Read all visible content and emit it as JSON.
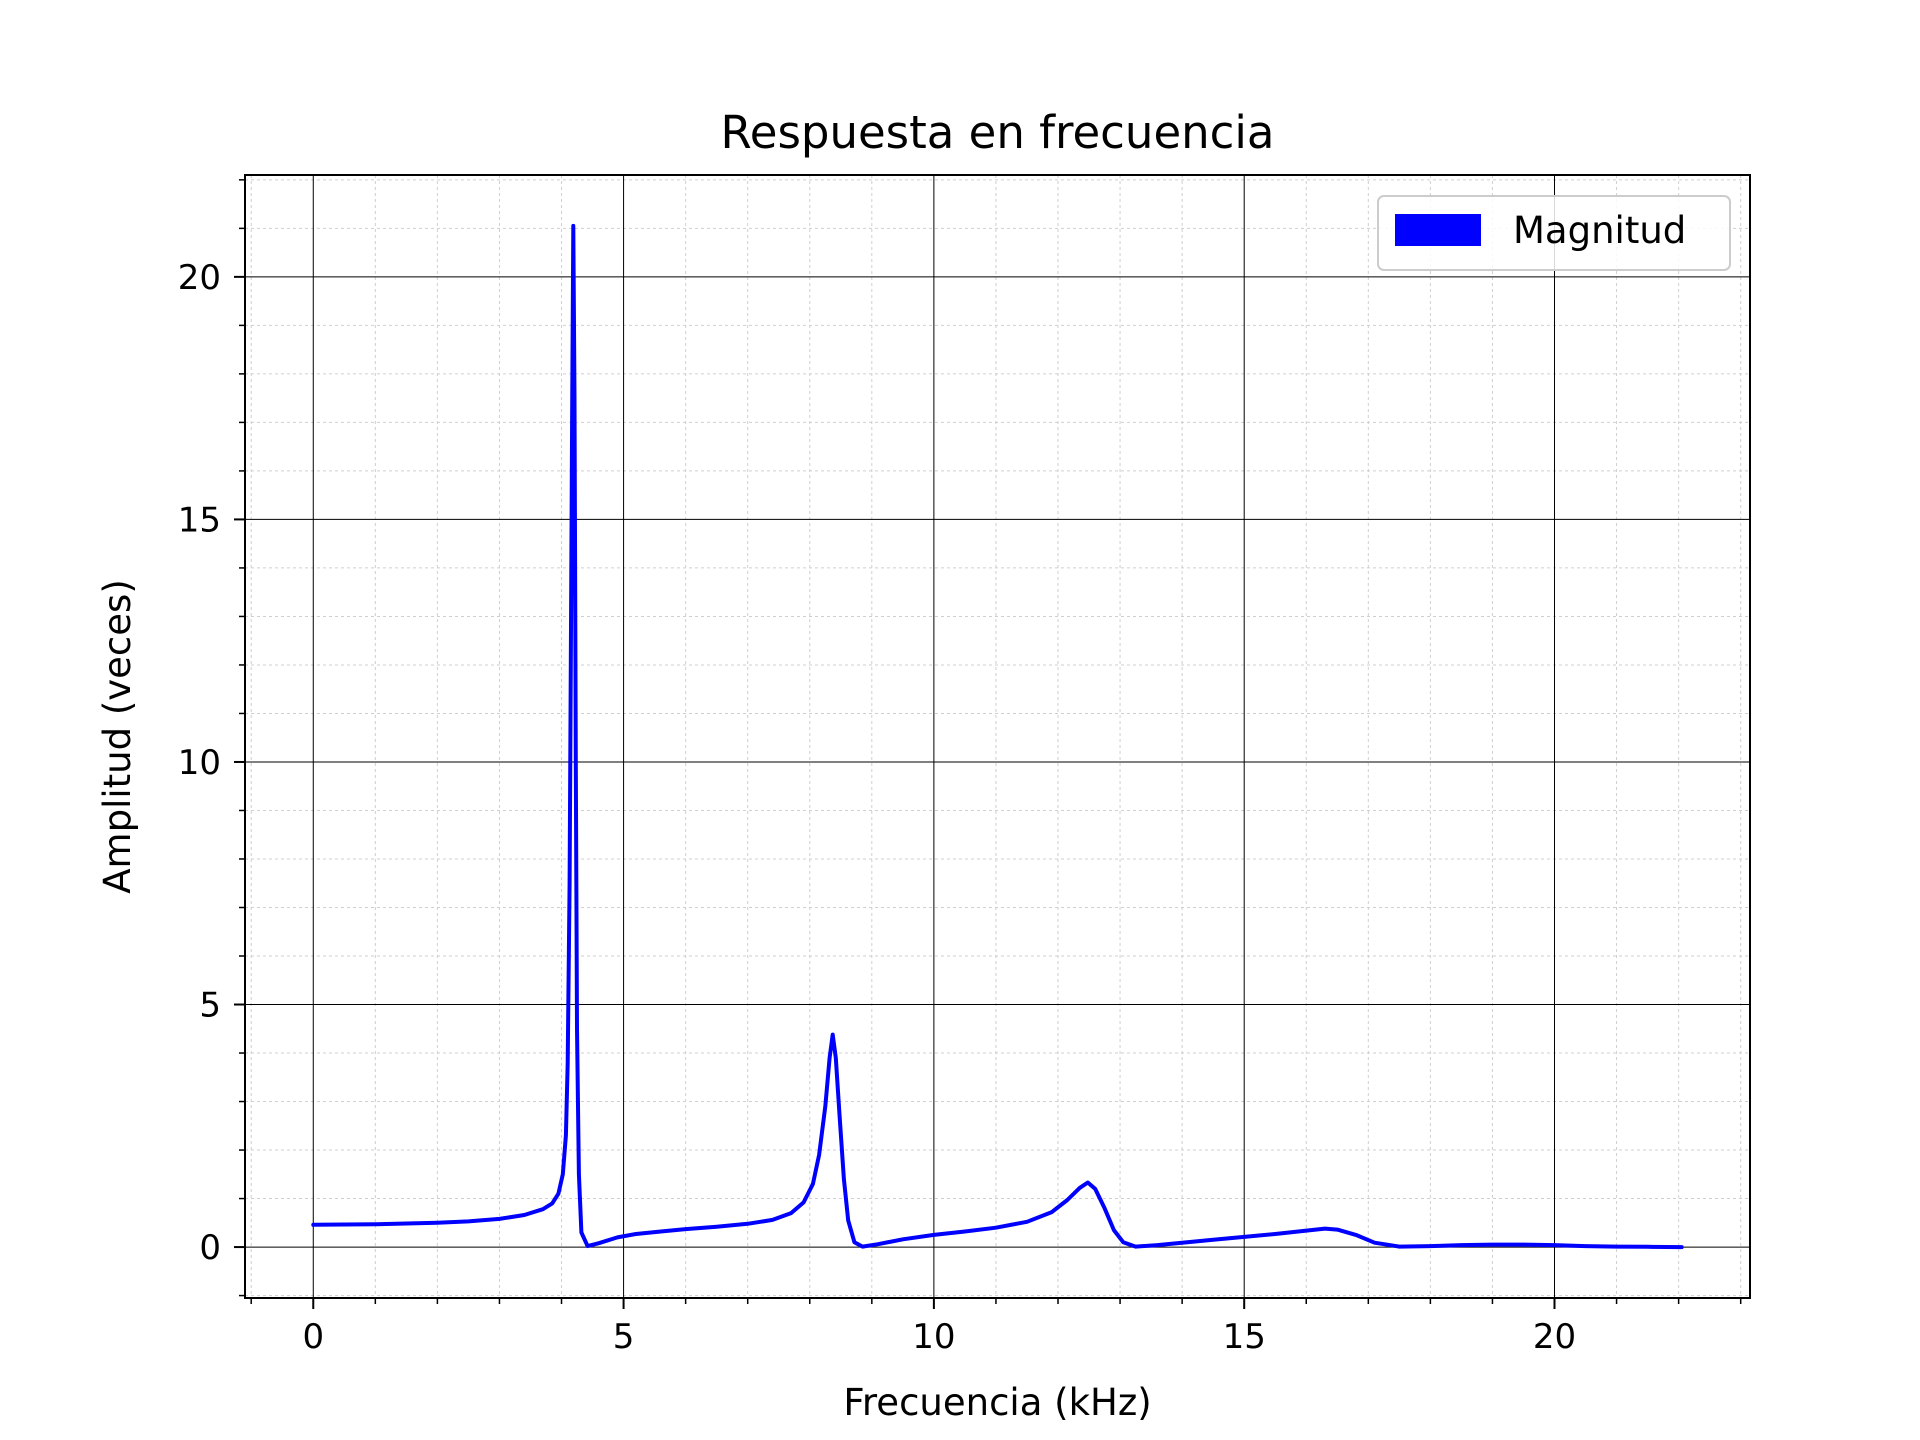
{
  "chart_data": {
    "type": "line",
    "title": "Respuesta en frecuencia",
    "xlabel": "Frecuencia (kHz)",
    "ylabel": "Amplitud (veces)",
    "xlim": [
      -1.1,
      23.15
    ],
    "ylim": [
      -1.05,
      22.1
    ],
    "xticks": [
      0,
      5,
      10,
      15,
      20
    ],
    "yticks": [
      0,
      5,
      10,
      15,
      20
    ],
    "x_minor_step": 1,
    "y_minor_step": 1,
    "grid": {
      "major": true,
      "minor": true
    },
    "legend": {
      "position": "top-right",
      "entries": [
        "Magnitud"
      ]
    },
    "colors": {
      "series": "#0000ff",
      "major_grid": "#000000",
      "minor_grid": "#cfcfcf"
    },
    "series": [
      {
        "name": "Magnitud",
        "points": [
          [
            0.0,
            0.46
          ],
          [
            1.0,
            0.47
          ],
          [
            2.0,
            0.5
          ],
          [
            2.5,
            0.53
          ],
          [
            3.0,
            0.58
          ],
          [
            3.4,
            0.66
          ],
          [
            3.7,
            0.78
          ],
          [
            3.85,
            0.9
          ],
          [
            3.95,
            1.1
          ],
          [
            4.02,
            1.5
          ],
          [
            4.07,
            2.3
          ],
          [
            4.1,
            3.8
          ],
          [
            4.13,
            7.5
          ],
          [
            4.15,
            12.0
          ],
          [
            4.17,
            17.0
          ],
          [
            4.19,
            21.05
          ],
          [
            4.21,
            17.5
          ],
          [
            4.23,
            10.0
          ],
          [
            4.25,
            4.5
          ],
          [
            4.28,
            1.5
          ],
          [
            4.32,
            0.3
          ],
          [
            4.42,
            0.02
          ],
          [
            4.6,
            0.08
          ],
          [
            4.9,
            0.2
          ],
          [
            5.2,
            0.27
          ],
          [
            5.6,
            0.32
          ],
          [
            6.0,
            0.37
          ],
          [
            6.5,
            0.42
          ],
          [
            7.0,
            0.48
          ],
          [
            7.4,
            0.56
          ],
          [
            7.7,
            0.7
          ],
          [
            7.9,
            0.92
          ],
          [
            8.05,
            1.3
          ],
          [
            8.15,
            1.9
          ],
          [
            8.25,
            2.9
          ],
          [
            8.32,
            3.9
          ],
          [
            8.37,
            4.38
          ],
          [
            8.42,
            3.9
          ],
          [
            8.48,
            2.7
          ],
          [
            8.55,
            1.4
          ],
          [
            8.62,
            0.55
          ],
          [
            8.72,
            0.1
          ],
          [
            8.85,
            0.01
          ],
          [
            9.1,
            0.06
          ],
          [
            9.5,
            0.16
          ],
          [
            10.0,
            0.25
          ],
          [
            10.5,
            0.32
          ],
          [
            11.0,
            0.4
          ],
          [
            11.5,
            0.52
          ],
          [
            11.9,
            0.72
          ],
          [
            12.15,
            0.97
          ],
          [
            12.35,
            1.22
          ],
          [
            12.48,
            1.33
          ],
          [
            12.6,
            1.2
          ],
          [
            12.75,
            0.8
          ],
          [
            12.9,
            0.35
          ],
          [
            13.05,
            0.1
          ],
          [
            13.25,
            0.01
          ],
          [
            13.6,
            0.04
          ],
          [
            14.0,
            0.09
          ],
          [
            14.5,
            0.15
          ],
          [
            15.0,
            0.21
          ],
          [
            15.5,
            0.27
          ],
          [
            16.0,
            0.34
          ],
          [
            16.3,
            0.38
          ],
          [
            16.5,
            0.36
          ],
          [
            16.8,
            0.25
          ],
          [
            17.1,
            0.09
          ],
          [
            17.5,
            0.01
          ],
          [
            18.0,
            0.02
          ],
          [
            18.5,
            0.04
          ],
          [
            19.0,
            0.05
          ],
          [
            19.5,
            0.05
          ],
          [
            20.0,
            0.04
          ],
          [
            20.5,
            0.02
          ],
          [
            21.0,
            0.01
          ],
          [
            21.5,
            0.005
          ],
          [
            22.05,
            0.0
          ]
        ]
      }
    ]
  }
}
